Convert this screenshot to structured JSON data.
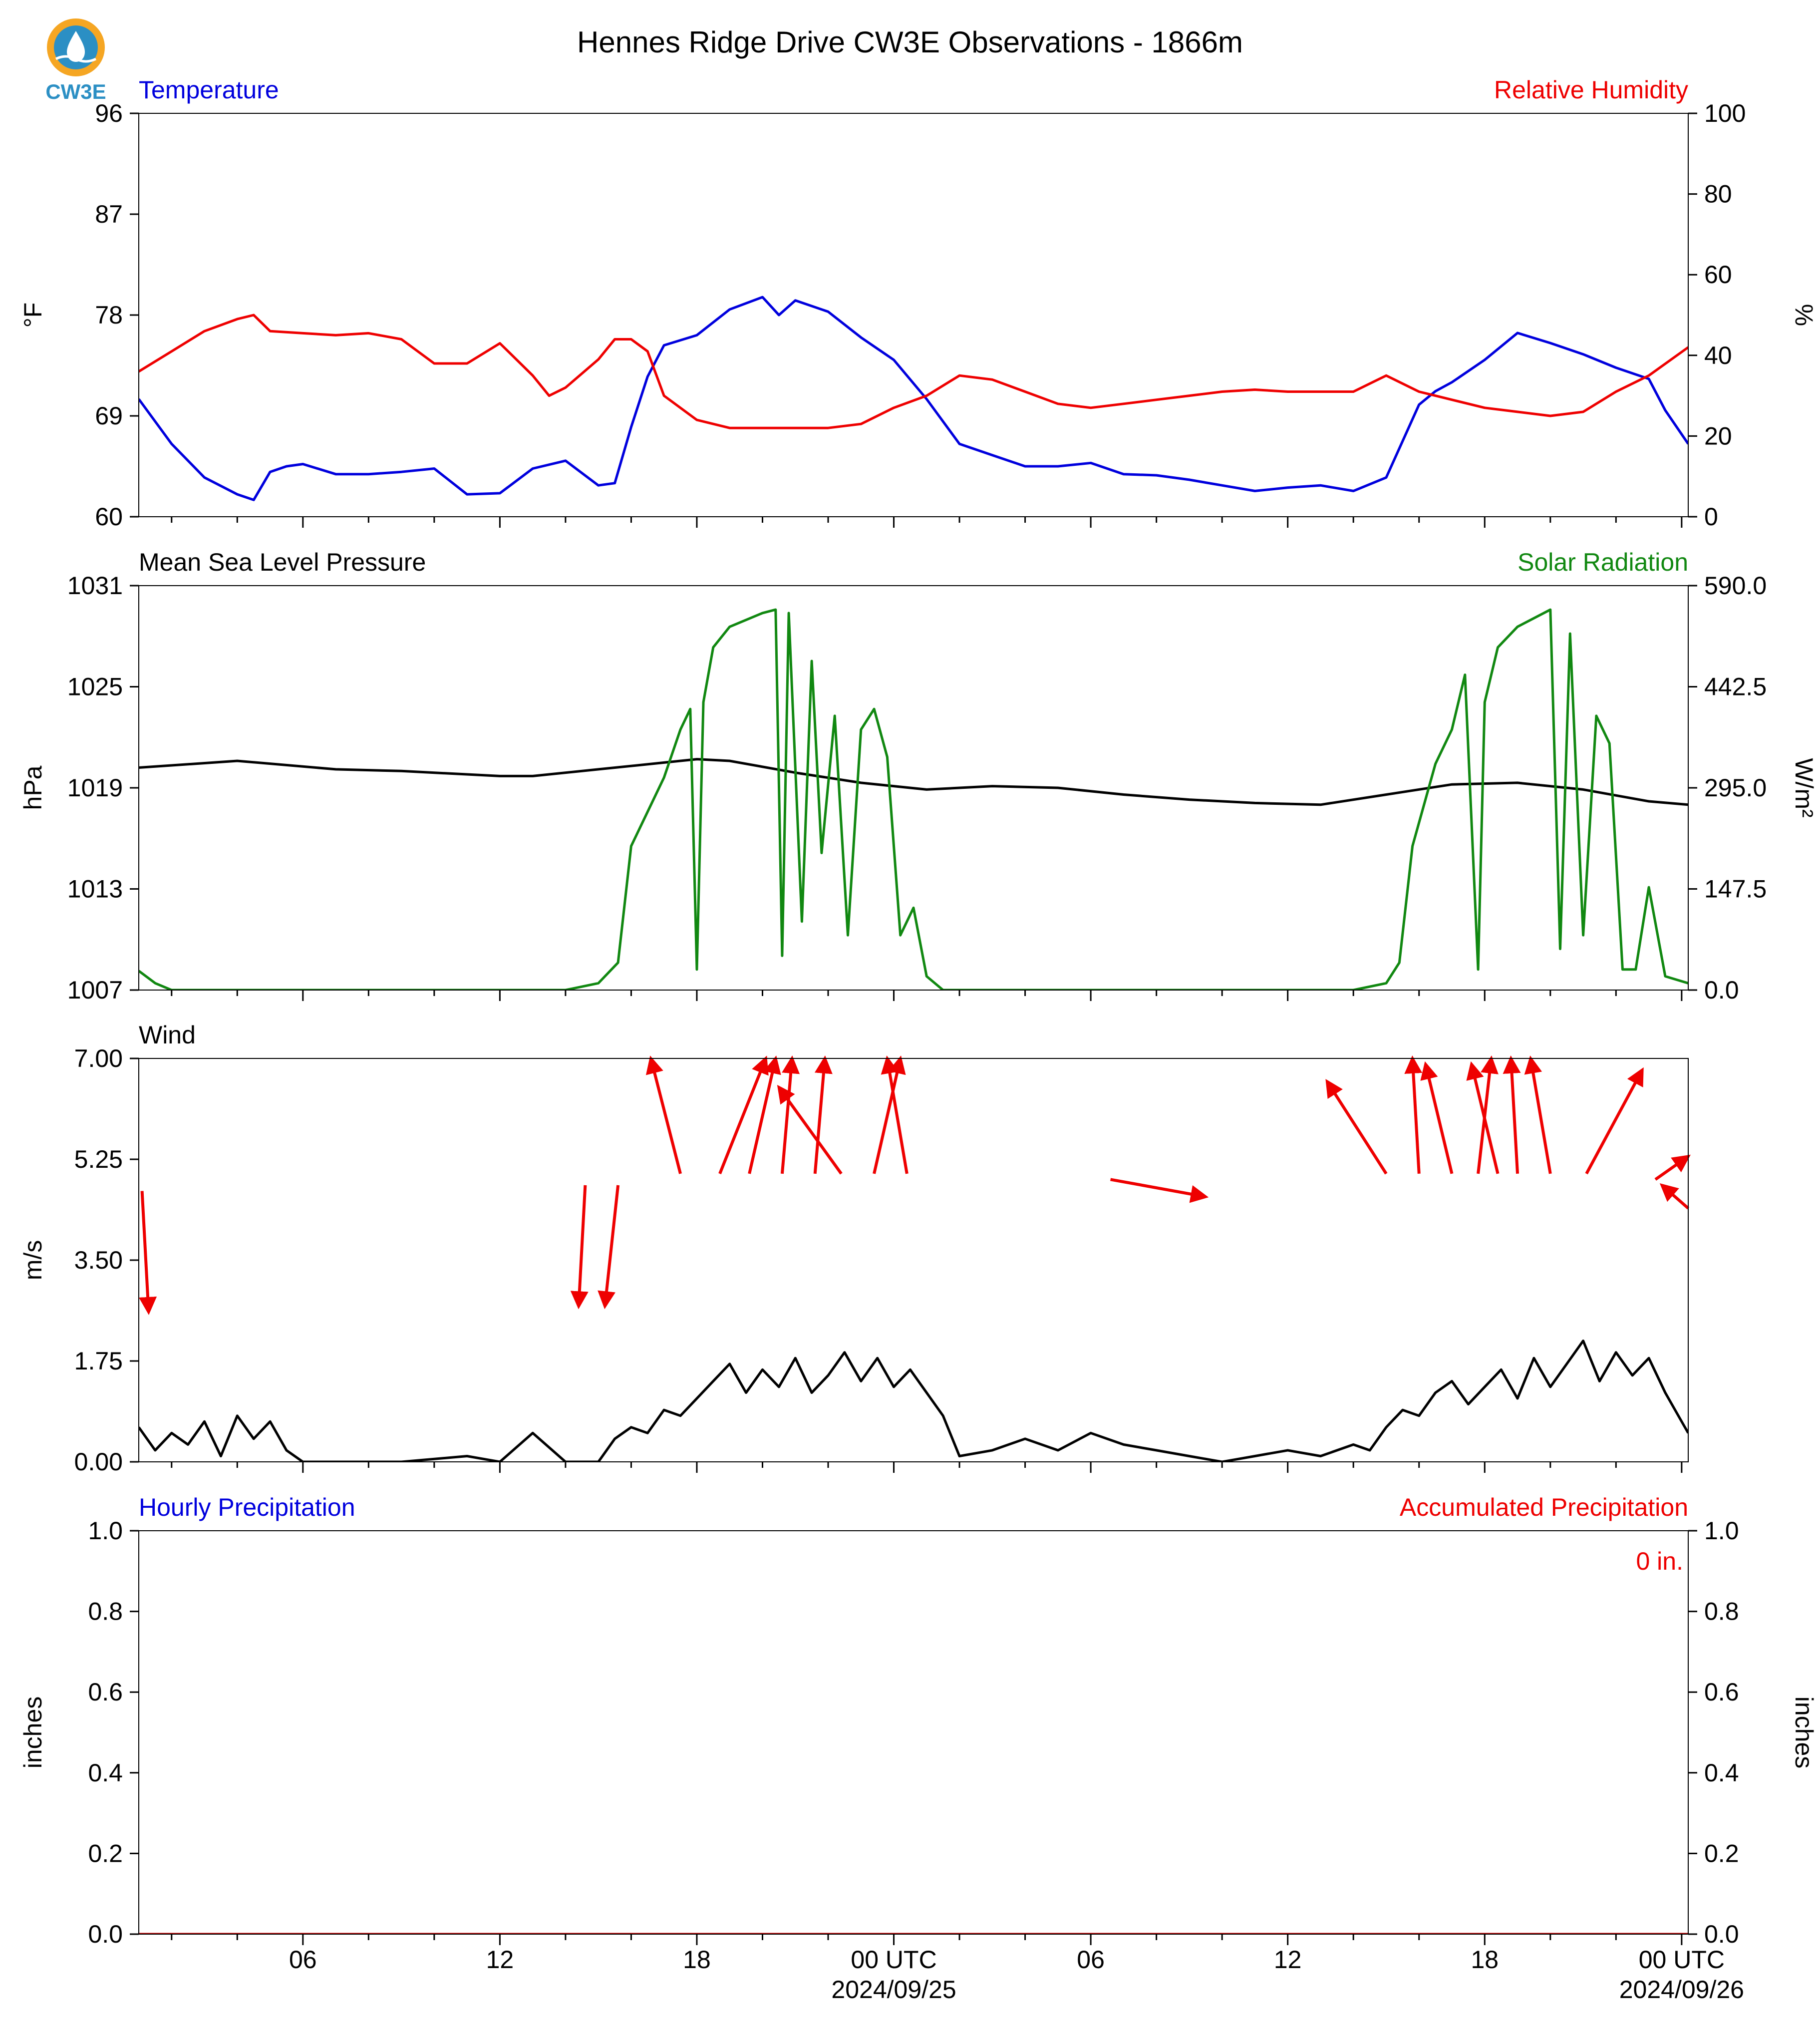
{
  "title": "Hennes Ridge Drive CW3E Observations - 1866m",
  "logo": {
    "text": "CW3E",
    "icon": "cw3e-logo-icon",
    "color": "#2b8fc4",
    "accent": "#f5a623"
  },
  "x_axis": {
    "range_hours": [
      0,
      47.2
    ],
    "ticks": [
      {
        "hour": 5,
        "label": "06",
        "sublabel": ""
      },
      {
        "hour": 11,
        "label": "12",
        "sublabel": ""
      },
      {
        "hour": 17,
        "label": "18",
        "sublabel": ""
      },
      {
        "hour": 23,
        "label": "00 UTC",
        "sublabel": "2024/09/25"
      },
      {
        "hour": 29,
        "label": "06",
        "sublabel": ""
      },
      {
        "hour": 35,
        "label": "12",
        "sublabel": ""
      },
      {
        "hour": 41,
        "label": "18",
        "sublabel": ""
      },
      {
        "hour": 47,
        "label": "00 UTC",
        "sublabel": "2024/09/26"
      }
    ]
  },
  "chart_data": [
    {
      "type": "line",
      "left_label": "Temperature",
      "right_label": "Relative Humidity",
      "left_ylabel": "°F",
      "right_ylabel": "%",
      "left_ylim": [
        60,
        96
      ],
      "right_ylim": [
        0,
        100
      ],
      "left_ticks": [
        "60",
        "69",
        "78",
        "87",
        "96"
      ],
      "right_ticks": [
        "0",
        "20",
        "40",
        "60",
        "80",
        "100"
      ],
      "series": [
        {
          "axis": "left",
          "color": "#0000dd",
          "x": [
            0,
            1,
            2,
            3,
            3.5,
            4,
            4.5,
            5,
            6,
            7,
            8,
            9,
            10,
            11,
            12,
            13,
            14,
            14.5,
            15,
            15.5,
            16,
            17,
            18,
            19,
            19.5,
            20,
            21,
            22,
            23,
            24,
            25,
            26,
            27,
            28,
            29,
            30,
            31,
            32,
            33,
            34,
            35,
            36,
            37,
            38,
            39,
            39.5,
            40,
            41,
            42,
            43,
            44,
            45,
            46,
            46.5,
            47.2
          ],
          "y": [
            70.5,
            66.5,
            63.5,
            62,
            61.5,
            64,
            64.5,
            64.7,
            63.8,
            63.8,
            64,
            64.3,
            62,
            62.1,
            64.3,
            65,
            62.8,
            63,
            68,
            72.5,
            75.3,
            76.2,
            78.5,
            79.6,
            78,
            79.3,
            78.3,
            76,
            74,
            70.5,
            66.5,
            65.5,
            64.5,
            64.5,
            64.8,
            63.8,
            63.7,
            63.3,
            62.8,
            62.3,
            62.6,
            62.8,
            62.3,
            63.5,
            70,
            71.2,
            72,
            74,
            76.4,
            75.5,
            74.5,
            73.3,
            72.3,
            69.5,
            66.5
          ]
        },
        {
          "axis": "right",
          "color": "#ee0000",
          "x": [
            0,
            1,
            2,
            3,
            3.5,
            4,
            5,
            6,
            7,
            8,
            9,
            10,
            11,
            12,
            12.5,
            13,
            14,
            14.5,
            15,
            15.5,
            16,
            17,
            18,
            19,
            20,
            21,
            22,
            23,
            24,
            25,
            26,
            27,
            28,
            29,
            30,
            31,
            32,
            33,
            34,
            35,
            36,
            37,
            38,
            39,
            39.5,
            40,
            41,
            42,
            43,
            44,
            45,
            46,
            47.2
          ],
          "y": [
            36,
            41,
            46,
            49,
            50,
            46,
            45.5,
            45,
            45.5,
            44,
            38,
            38,
            43,
            35,
            30,
            32,
            39,
            44,
            44,
            41,
            30,
            24,
            22,
            22,
            22,
            22,
            23,
            27,
            30,
            35,
            34,
            31,
            28,
            27,
            28,
            29,
            30,
            31,
            31.5,
            31,
            31,
            31,
            35,
            31,
            30,
            29,
            27,
            26,
            25,
            26,
            31,
            35,
            42
          ]
        }
      ]
    },
    {
      "type": "line",
      "left_label": "Mean Sea Level Pressure",
      "right_label": "Solar Radiation",
      "left_ylabel": "hPa",
      "right_ylabel": "W/m²",
      "left_ylim": [
        1007,
        1031
      ],
      "right_ylim": [
        0,
        590
      ],
      "left_ticks": [
        "1007",
        "1013",
        "1019",
        "1025",
        "1031"
      ],
      "right_ticks": [
        "0.0",
        "147.5",
        "295.0",
        "442.5",
        "590.0"
      ],
      "series": [
        {
          "axis": "left",
          "color": "#000000",
          "x": [
            0,
            3,
            6,
            8,
            11,
            12,
            14,
            16,
            17,
            18,
            20,
            22,
            23,
            24,
            26,
            28,
            30,
            32,
            34,
            36,
            38,
            40,
            42,
            44,
            46,
            47.2
          ],
          "y": [
            1020.2,
            1020.6,
            1020.1,
            1020,
            1019.7,
            1019.7,
            1020.1,
            1020.5,
            1020.7,
            1020.6,
            1019.9,
            1019.3,
            1019.1,
            1018.9,
            1019.1,
            1019,
            1018.6,
            1018.3,
            1018.1,
            1018.0,
            1018.6,
            1019.2,
            1019.3,
            1018.9,
            1018.2,
            1018
          ]
        },
        {
          "axis": "right",
          "color": "#118811",
          "x": [
            0,
            0.5,
            1,
            13,
            14,
            14.6,
            15,
            16,
            16.5,
            16.8,
            17,
            17.2,
            17.5,
            18,
            19,
            19.4,
            19.6,
            19.8,
            20.2,
            20.5,
            20.8,
            21.2,
            21.6,
            22,
            22.4,
            22.8,
            23.2,
            23.6,
            24,
            24.5,
            25,
            37,
            38,
            38.4,
            38.8,
            39.5,
            40,
            40.4,
            40.8,
            41,
            41.4,
            42,
            43,
            43.3,
            43.6,
            44,
            44.4,
            44.8,
            45.2,
            45.6,
            46,
            46.5,
            47.2
          ],
          "y": [
            28,
            10,
            0,
            0,
            10,
            40,
            210,
            310,
            380,
            410,
            30,
            420,
            500,
            530,
            550,
            555,
            50,
            550,
            100,
            480,
            200,
            400,
            80,
            380,
            410,
            340,
            80,
            120,
            20,
            0,
            0,
            0,
            10,
            40,
            210,
            330,
            380,
            460,
            30,
            420,
            500,
            530,
            555,
            60,
            520,
            80,
            400,
            360,
            30,
            30,
            150,
            20,
            10
          ]
        }
      ]
    },
    {
      "type": "line",
      "left_label": "Wind",
      "left_ylabel": "m/s",
      "left_ylim": [
        0,
        7
      ],
      "left_ticks": [
        "0.00",
        "1.75",
        "3.50",
        "5.25",
        "7.00"
      ],
      "series": [
        {
          "axis": "left",
          "color": "#000000",
          "x": [
            0,
            0.5,
            1,
            1.5,
            2,
            2.5,
            3,
            3.5,
            4,
            4.5,
            5,
            6,
            8,
            10,
            11,
            12,
            13,
            13.5,
            14,
            14.5,
            15,
            15.5,
            16,
            16.5,
            17,
            17.5,
            18,
            18.5,
            19,
            19.5,
            20,
            20.5,
            21,
            21.5,
            22,
            22.5,
            23,
            23.5,
            24,
            24.5,
            25,
            26,
            27,
            28,
            29,
            30,
            31,
            32,
            33,
            34,
            35,
            36,
            37,
            37.5,
            38,
            38.5,
            39,
            39.5,
            40,
            40.5,
            41,
            41.5,
            42,
            42.5,
            43,
            43.5,
            44,
            44.5,
            45,
            45.5,
            46,
            46.5,
            47,
            47.2
          ],
          "y": [
            0.6,
            0.2,
            0.5,
            0.3,
            0.7,
            0.1,
            0.8,
            0.4,
            0.7,
            0.2,
            0,
            0,
            0,
            0.1,
            0,
            0.5,
            0,
            0,
            0,
            0.4,
            0.6,
            0.5,
            0.9,
            0.8,
            1.1,
            1.4,
            1.7,
            1.2,
            1.6,
            1.3,
            1.8,
            1.2,
            1.5,
            1.9,
            1.4,
            1.8,
            1.3,
            1.6,
            1.2,
            0.8,
            0.1,
            0.2,
            0.4,
            0.2,
            0.5,
            0.3,
            0.2,
            0.1,
            0,
            0.1,
            0.2,
            0.1,
            0.3,
            0.2,
            0.6,
            0.9,
            0.8,
            1.2,
            1.4,
            1.0,
            1.3,
            1.6,
            1.1,
            1.8,
            1.3,
            1.7,
            2.1,
            1.4,
            1.9,
            1.5,
            1.8,
            1.2,
            0.7,
            0.5
          ]
        }
      ],
      "wind_arrows": {
        "color": "#ee0000",
        "items": [
          {
            "x0": 0.1,
            "y0": 4.7,
            "x1": 0.3,
            "y1": 2.6
          },
          {
            "x0": 13.6,
            "y0": 4.8,
            "x1": 13.4,
            "y1": 2.7
          },
          {
            "x0": 14.6,
            "y0": 4.8,
            "x1": 14.2,
            "y1": 2.7
          },
          {
            "x0": 16.5,
            "y0": 5.0,
            "x1": 15.6,
            "y1": 7.0
          },
          {
            "x0": 17.7,
            "y0": 5.0,
            "x1": 19.1,
            "y1": 7.0
          },
          {
            "x0": 18.6,
            "y0": 5.0,
            "x1": 19.4,
            "y1": 7.0
          },
          {
            "x0": 19.6,
            "y0": 5.0,
            "x1": 19.9,
            "y1": 7.0
          },
          {
            "x0": 20.6,
            "y0": 5.0,
            "x1": 20.9,
            "y1": 7.0
          },
          {
            "x0": 21.4,
            "y0": 5.0,
            "x1": 19.5,
            "y1": 6.5
          },
          {
            "x0": 22.4,
            "y0": 5.0,
            "x1": 23.2,
            "y1": 7.0
          },
          {
            "x0": 23.4,
            "y0": 5.0,
            "x1": 22.8,
            "y1": 7.0
          },
          {
            "x0": 29.6,
            "y0": 4.9,
            "x1": 32.5,
            "y1": 4.6
          },
          {
            "x0": 38.0,
            "y0": 5.0,
            "x1": 36.2,
            "y1": 6.6
          },
          {
            "x0": 39.0,
            "y0": 5.0,
            "x1": 38.8,
            "y1": 7.0
          },
          {
            "x0": 40.0,
            "y0": 5.0,
            "x1": 39.2,
            "y1": 6.9
          },
          {
            "x0": 40.8,
            "y0": 5.0,
            "x1": 41.2,
            "y1": 7.0
          },
          {
            "x0": 41.4,
            "y0": 5.0,
            "x1": 40.6,
            "y1": 6.9
          },
          {
            "x0": 42.0,
            "y0": 5.0,
            "x1": 41.8,
            "y1": 7.0
          },
          {
            "x0": 43.0,
            "y0": 5.0,
            "x1": 42.4,
            "y1": 7.0
          },
          {
            "x0": 44.1,
            "y0": 5.0,
            "x1": 45.8,
            "y1": 6.8
          },
          {
            "x0": 46.2,
            "y0": 4.9,
            "x1": 47.2,
            "y1": 5.3
          },
          {
            "x0": 47.2,
            "y0": 4.4,
            "x1": 46.4,
            "y1": 4.8
          }
        ]
      }
    },
    {
      "type": "line",
      "left_label": "Hourly Precipitation",
      "right_label": "Accumulated Precipitation",
      "left_ylabel": "inches",
      "right_ylabel": "inches",
      "left_ylim": [
        0,
        1
      ],
      "right_ylim": [
        0,
        1
      ],
      "left_ticks": [
        "0.0",
        "0.2",
        "0.4",
        "0.6",
        "0.8",
        "1.0"
      ],
      "right_ticks": [
        "0.0",
        "0.2",
        "0.4",
        "0.6",
        "0.8",
        "1.0"
      ],
      "annotation": "0 in.",
      "series": [
        {
          "axis": "left",
          "color": "#0000dd",
          "x": [
            0,
            47.2
          ],
          "y": [
            0,
            0
          ]
        },
        {
          "axis": "right",
          "color": "#cc0000",
          "x": [
            0,
            47.2
          ],
          "y": [
            0,
            0
          ]
        }
      ]
    }
  ],
  "colors": {
    "temperature": "#0000dd",
    "humidity": "#ee0000",
    "pressure": "#000000",
    "solar": "#118811",
    "wind_arrows": "#ee0000"
  }
}
